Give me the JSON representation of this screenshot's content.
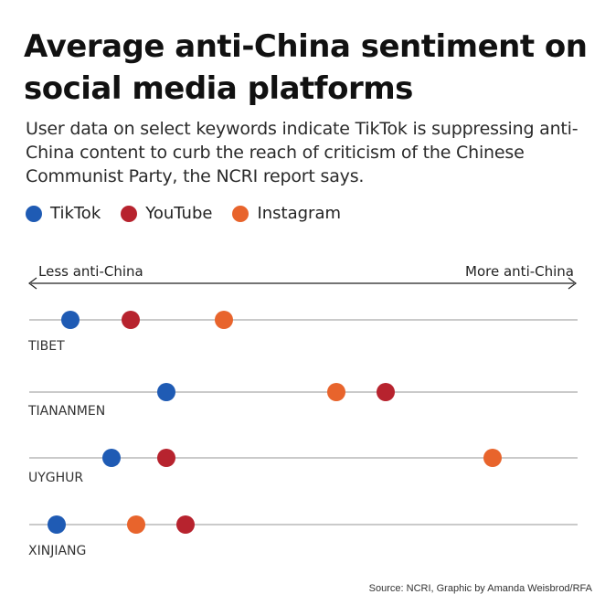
{
  "title": "Average anti-China sentiment on social media platforms",
  "subtitle": "User data on select keywords indicate TikTok is suppressing anti-China content to curb the reach of criticism of the Chinese Communist Party, the NCRI report says.",
  "source": "Source: NCRI, Graphic by Amanda Weisbrod/RFA",
  "colors": {
    "TikTok": "#1f5bb4",
    "YouTube": "#b7232e",
    "Instagram": "#e8642c",
    "line": "#aaaaaa"
  },
  "chart_data": {
    "type": "scatter",
    "subtype": "dot-plot",
    "axis_left_label": "Less anti-China",
    "axis_right_label": "More anti-China",
    "xlim": [
      0,
      100
    ],
    "legend_position": "top-left",
    "series": [
      {
        "name": "TikTok",
        "values": [
          7.5,
          25,
          15,
          5
        ]
      },
      {
        "name": "YouTube",
        "values": [
          18.5,
          65,
          25,
          28.5
        ]
      },
      {
        "name": "Instagram",
        "values": [
          35.5,
          56,
          84.5,
          19.5
        ]
      }
    ],
    "categories": [
      "TIBET",
      "TIANANMEN",
      "UYGHUR",
      "XINJIANG"
    ]
  }
}
